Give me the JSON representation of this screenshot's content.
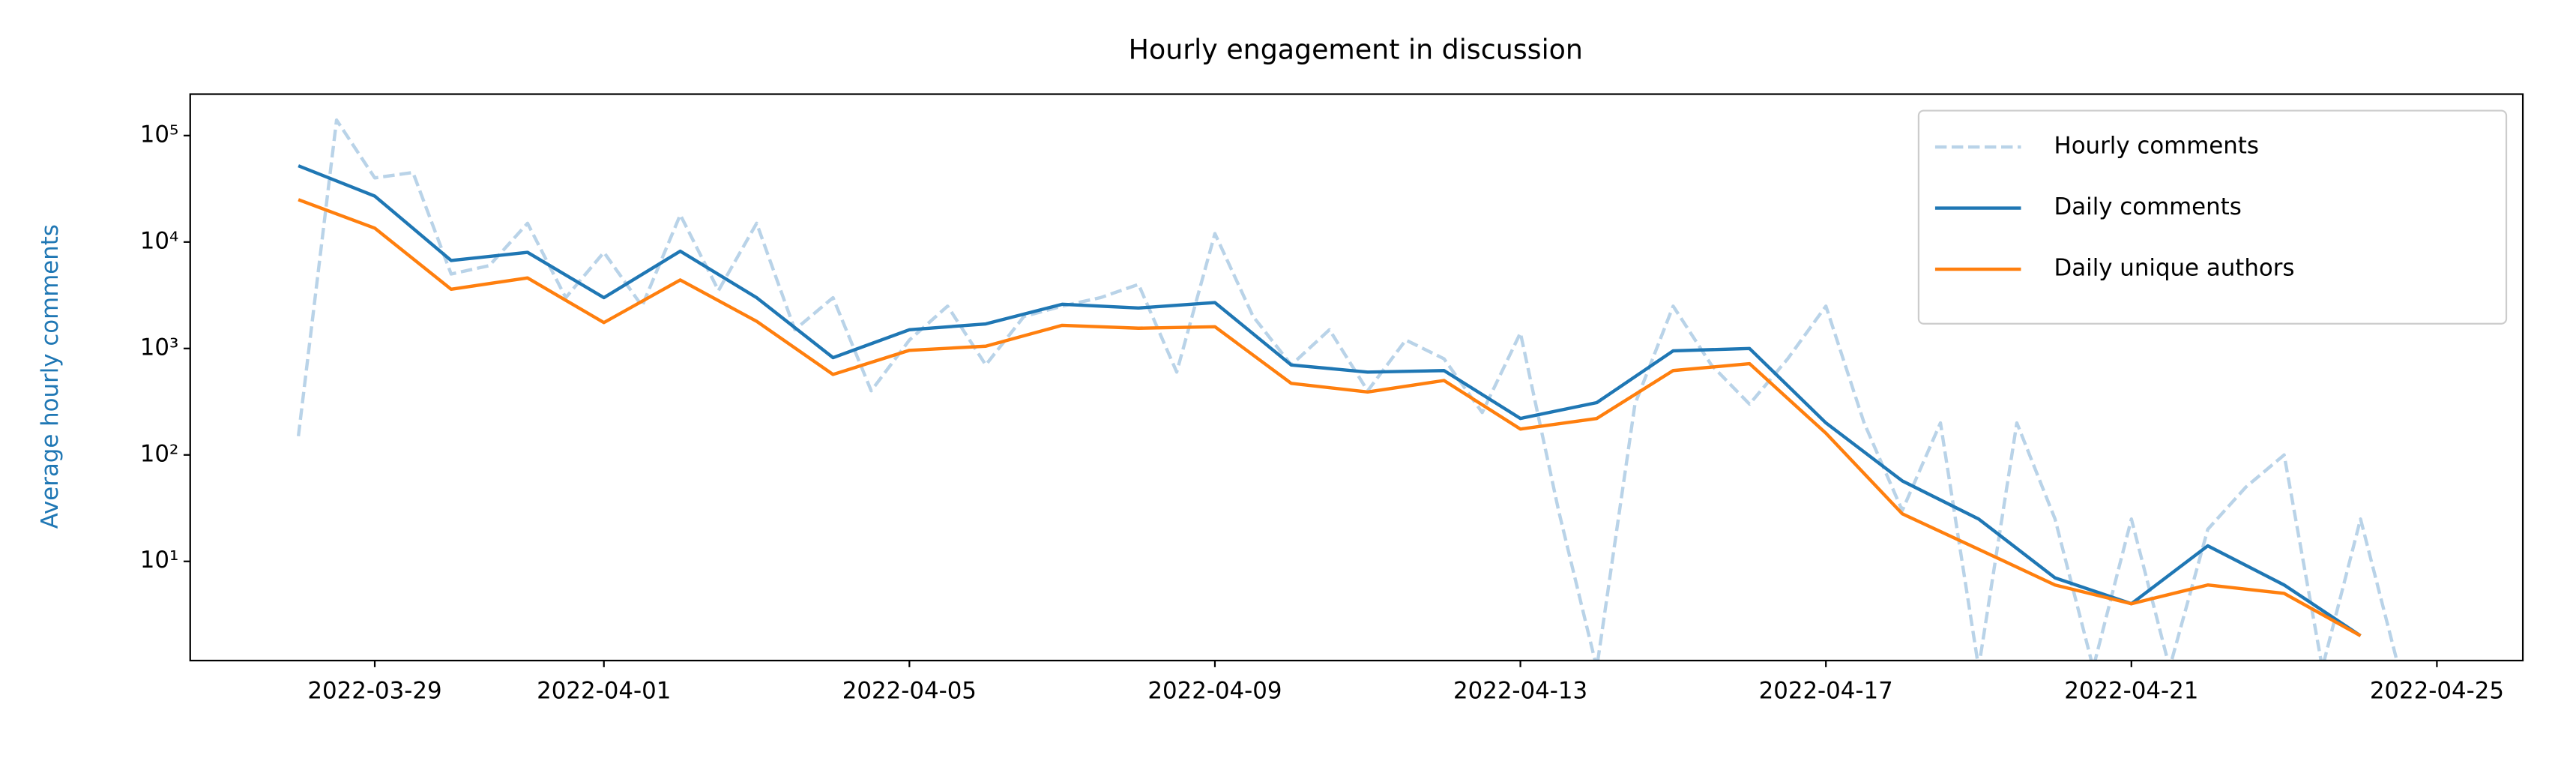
{
  "chart_data": {
    "type": "line",
    "title": "Hourly engagement in discussion",
    "y_label": "Average hourly comments",
    "log_y": true,
    "legend": "upper right",
    "xlim": [
      "2022-03-26 14:00",
      "2022-04-26 03:00"
    ],
    "xticks": [
      "2022-03-29",
      "2022-04-01",
      "2022-04-05",
      "2022-04-09",
      "2022-04-13",
      "2022-04-17",
      "2022-04-21",
      "2022-04-25"
    ],
    "ylim": [
      1.17,
      245000
    ],
    "yticks": [
      {
        "value": 10,
        "label": "10¹"
      },
      {
        "value": 100,
        "label": "10²"
      },
      {
        "value": 1000,
        "label": "10³"
      },
      {
        "value": 10000,
        "label": "10⁴"
      },
      {
        "value": 100000,
        "label": "10⁵"
      }
    ],
    "x": [
      "2022-03-28",
      "2022-03-29",
      "2022-03-30",
      "2022-03-31",
      "2022-04-01",
      "2022-04-02",
      "2022-04-03",
      "2022-04-04",
      "2022-04-05",
      "2022-04-06",
      "2022-04-07",
      "2022-04-08",
      "2022-04-09",
      "2022-04-10",
      "2022-04-11",
      "2022-04-12",
      "2022-04-13",
      "2022-04-14",
      "2022-04-15",
      "2022-04-16",
      "2022-04-17",
      "2022-04-18",
      "2022-04-19",
      "2022-04-20",
      "2022-04-21",
      "2022-04-22",
      "2022-04-23",
      "2022-04-24"
    ],
    "series": [
      {
        "name": "Hourly comments",
        "color": "#b9d3e8",
        "dashed": true,
        "x": [
          "2022-03-28 00:00",
          "2022-03-28 12:00",
          "2022-03-29 00:00",
          "2022-03-29 12:00",
          "2022-03-30 00:00",
          "2022-03-30 12:00",
          "2022-03-31 00:00",
          "2022-03-31 12:00",
          "2022-04-01 00:00",
          "2022-04-01 12:00",
          "2022-04-02 00:00",
          "2022-04-02 12:00",
          "2022-04-03 00:00",
          "2022-04-03 12:00",
          "2022-04-04 00:00",
          "2022-04-04 12:00",
          "2022-04-05 00:00",
          "2022-04-05 12:00",
          "2022-04-06 00:00",
          "2022-04-06 12:00",
          "2022-04-07 00:00",
          "2022-04-07 12:00",
          "2022-04-08 00:00",
          "2022-04-08 12:00",
          "2022-04-09 00:00",
          "2022-04-09 12:00",
          "2022-04-10 00:00",
          "2022-04-10 12:00",
          "2022-04-11 00:00",
          "2022-04-11 12:00",
          "2022-04-12 00:00",
          "2022-04-12 12:00",
          "2022-04-13 00:00",
          "2022-04-13 12:00",
          "2022-04-14 00:00",
          "2022-04-14 12:00",
          "2022-04-15 00:00",
          "2022-04-15 12:00",
          "2022-04-16 00:00",
          "2022-04-16 12:00",
          "2022-04-17 00:00",
          "2022-04-17 12:00",
          "2022-04-18 00:00",
          "2022-04-18 12:00",
          "2022-04-19 00:00",
          "2022-04-19 12:00",
          "2022-04-20 00:00",
          "2022-04-20 12:00",
          "2022-04-21 00:00",
          "2022-04-21 12:00",
          "2022-04-22 00:00",
          "2022-04-22 12:00",
          "2022-04-23 00:00",
          "2022-04-23 12:00",
          "2022-04-24 00:00",
          "2022-04-24 12:00"
        ],
        "values": [
          150,
          140000,
          40000,
          45000,
          5000,
          6000,
          15000,
          3000,
          8000,
          2500,
          18000,
          3500,
          15000,
          1500,
          3000,
          400,
          1200,
          2500,
          700,
          2000,
          2500,
          3000,
          4000,
          600,
          12000,
          2000,
          700,
          1500,
          400,
          1200,
          800,
          250,
          1400,
          30,
          1,
          300,
          2500,
          700,
          300,
          800,
          2500,
          200,
          30,
          200,
          1,
          200,
          25,
          1,
          25,
          1,
          20,
          50,
          100,
          1,
          25,
          1
        ]
      },
      {
        "name": "Daily comments",
        "color": "#1f77b4",
        "values": [
          52000,
          27000,
          6700,
          8000,
          3000,
          8200,
          3000,
          820,
          1500,
          1700,
          2600,
          2400,
          2700,
          700,
          600,
          620,
          220,
          310,
          950,
          1000,
          200,
          57,
          25,
          7,
          4,
          14,
          6,
          2
        ]
      },
      {
        "name": "Daily unique authors",
        "color": "#ff7f0e",
        "values": [
          25000,
          13500,
          3600,
          4600,
          1750,
          4400,
          1800,
          570,
          960,
          1050,
          1650,
          1550,
          1600,
          470,
          390,
          500,
          175,
          220,
          620,
          720,
          160,
          28,
          13,
          6,
          4,
          6,
          5,
          2
        ]
      }
    ]
  }
}
